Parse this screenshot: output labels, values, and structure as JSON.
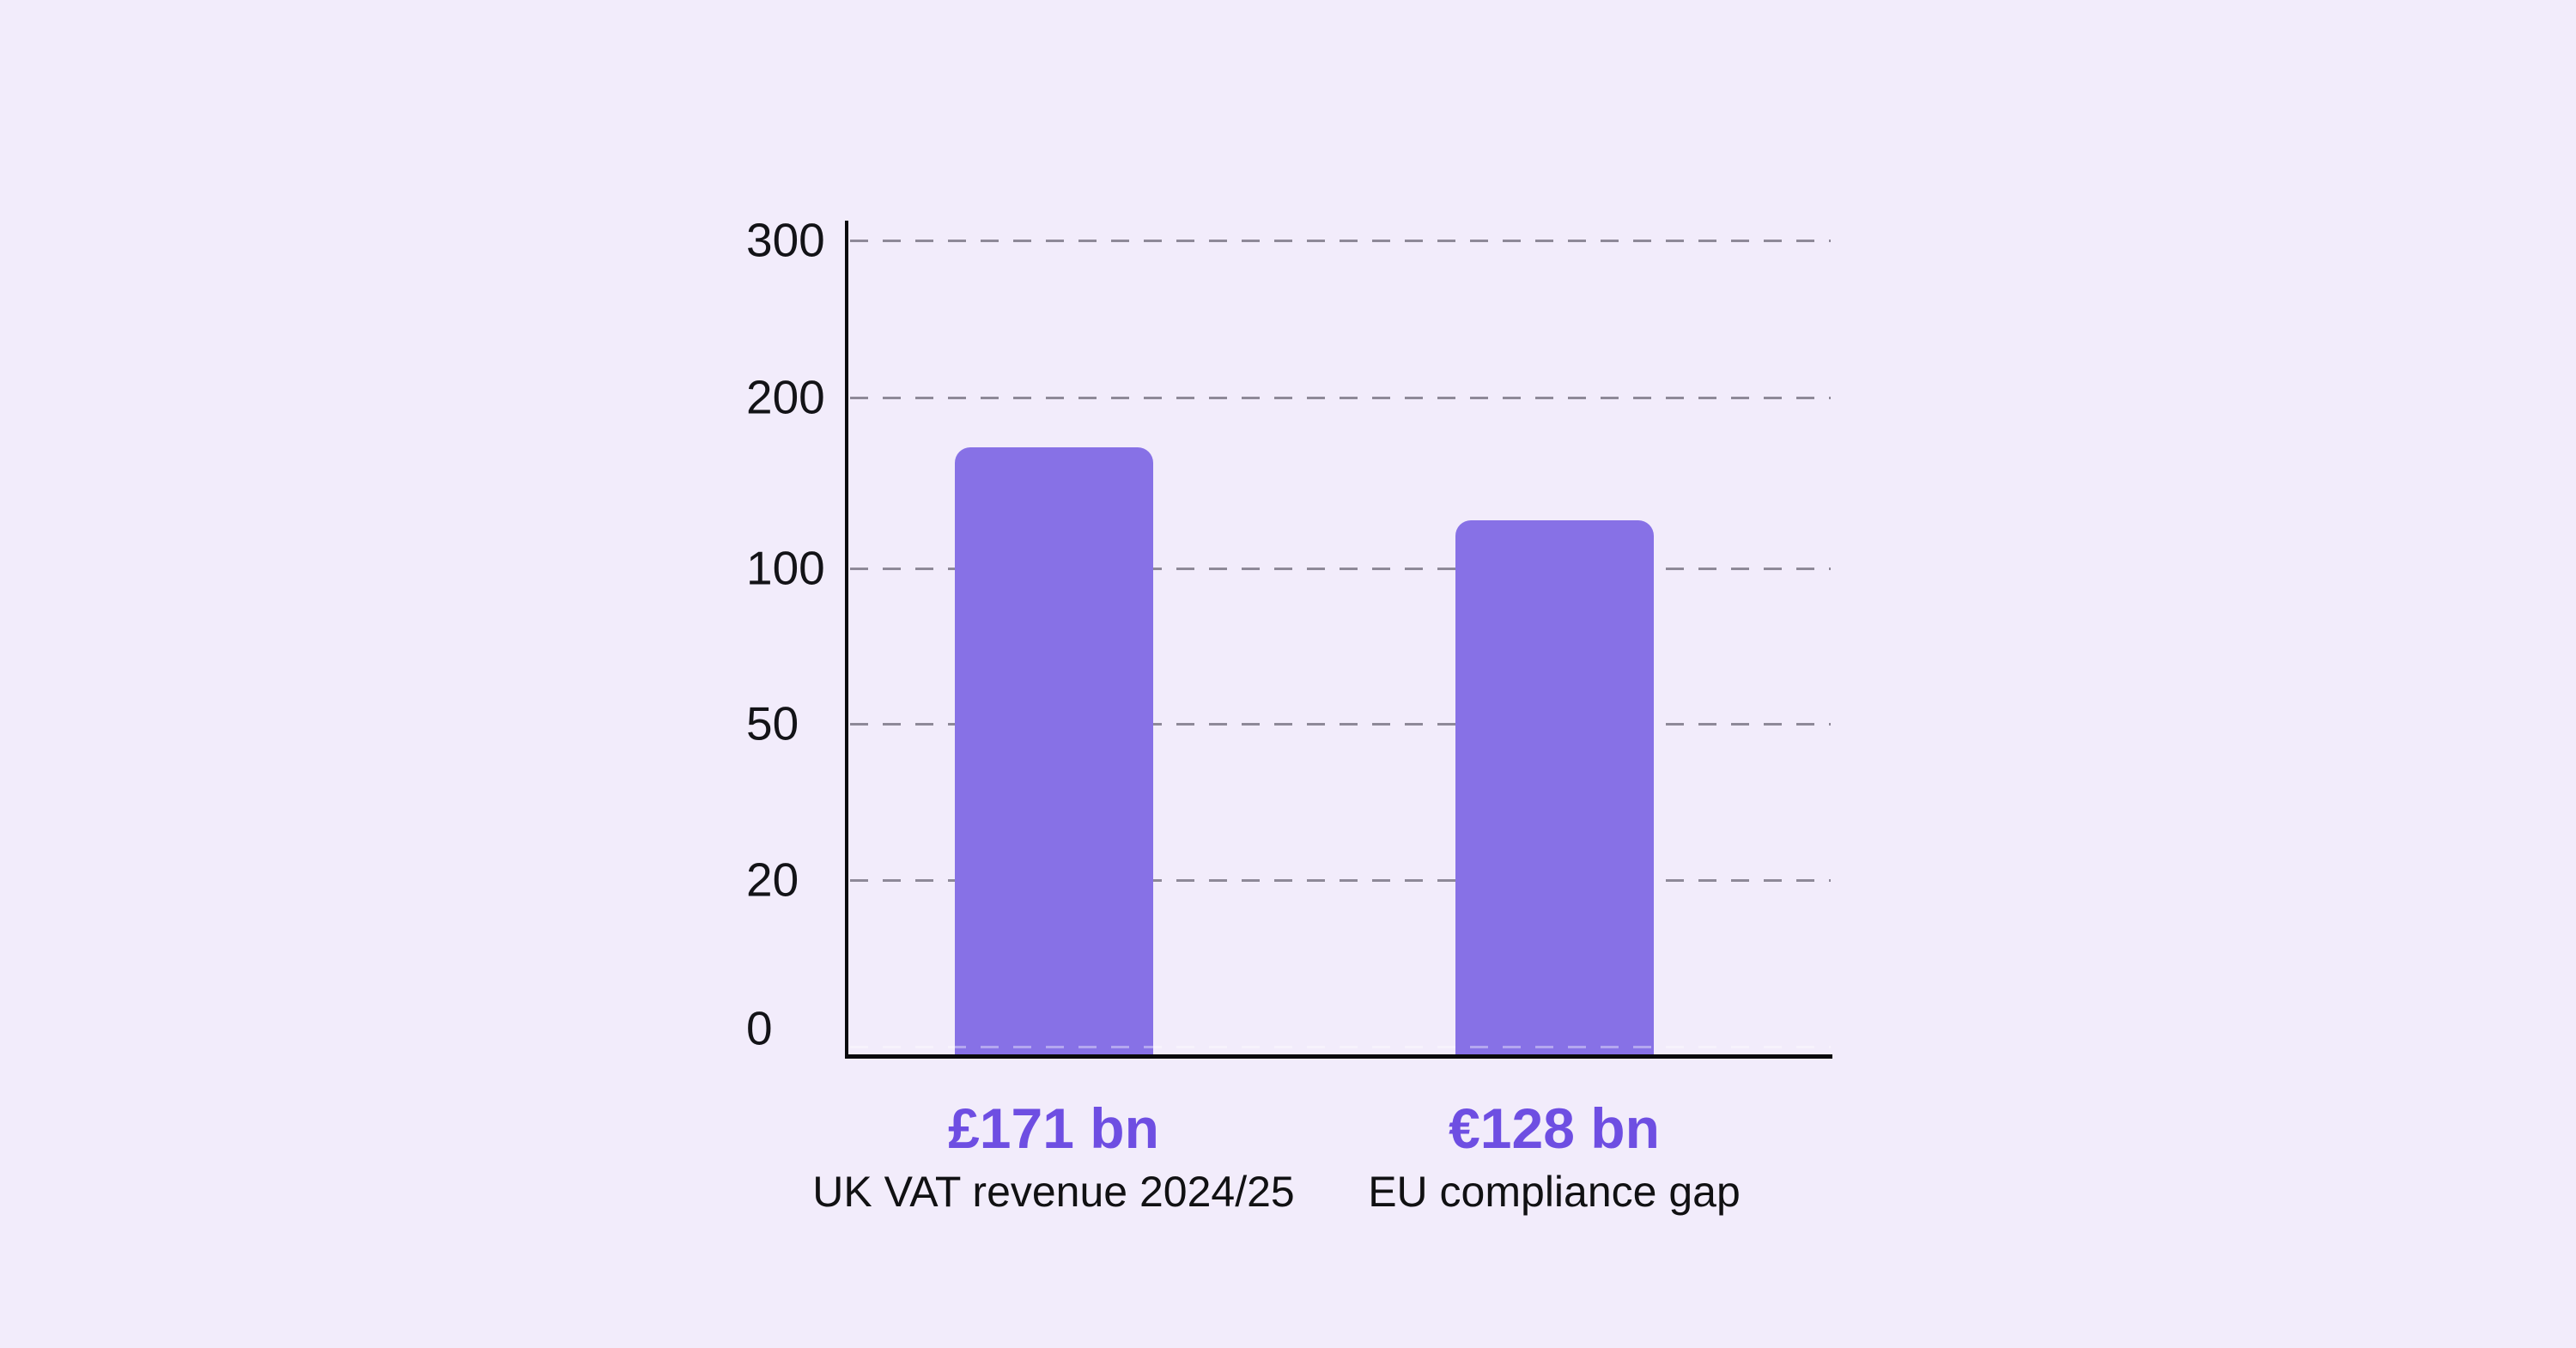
{
  "chart_data": {
    "type": "bar",
    "title": "",
    "xlabel": "",
    "ylabel": "",
    "categories": [
      "UK VAT revenue 2024/25",
      "EU compliance gap"
    ],
    "values": [
      171,
      128
    ],
    "value_labels": [
      "£171 bn",
      "€128 bn"
    ],
    "y_ticks": [
      300,
      200,
      100,
      50,
      20,
      0
    ],
    "ylim": [
      0,
      300
    ],
    "y_axis_scale": "non-linear: tick values 0, 20, 50, 100, 200, 300 drawn at even vertical spacing",
    "grid": "horizontal dashed gridlines at y ticks 20, 50, 100, 200, 300; none drawn at 0",
    "legend": "none"
  },
  "colors": {
    "background": "#f2ecfb",
    "bar_fill": "#8771e6",
    "value_label": "#6e4ee2",
    "category_label": "#111113",
    "tick_label": "#131317",
    "axis": "#0a0a0c",
    "gridline": "#8e8998"
  }
}
